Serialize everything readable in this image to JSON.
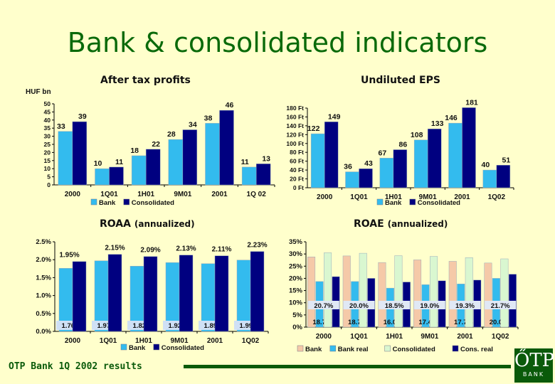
{
  "page": {
    "title": "Bank & consolidated indicators"
  },
  "footer": {
    "text": "OTP Bank 1Q 2002 results",
    "logo_word": "BANK",
    "logo_mark": "ŐTP"
  },
  "colors": {
    "bank": "#33bbee",
    "consolidated": "#000080",
    "bank_nominal": "#f5c9a8",
    "consolidated_nominal": "#d9f7d0",
    "brand": "#0a5a0a"
  },
  "chart_data": [
    {
      "id": "profits",
      "type": "bar",
      "title": "After tax profits",
      "unit": "HUF bn",
      "categories": [
        "2000",
        "1Q01",
        "1H01",
        "9M01",
        "2001",
        "1Q 02"
      ],
      "series": [
        {
          "name": "Bank",
          "values": [
            33,
            10,
            18,
            28,
            38,
            11
          ]
        },
        {
          "name": "Consolidated",
          "values": [
            39,
            11,
            22,
            34,
            46,
            13
          ]
        }
      ],
      "ylim": [
        0,
        50
      ],
      "yticks": [
        0,
        5,
        10,
        15,
        20,
        25,
        30,
        35,
        40,
        45,
        50
      ],
      "ytick_labels": [
        "0",
        "5",
        "10",
        "15",
        "20",
        "25",
        "30",
        "35",
        "40",
        "45",
        "50"
      ],
      "data_labels": [
        [
          "33",
          "10",
          "18",
          "28",
          "38",
          "11"
        ],
        [
          "39",
          "11",
          "22",
          "34",
          "46",
          "13"
        ]
      ],
      "legend": "bottom"
    },
    {
      "id": "eps",
      "type": "bar",
      "title": "Undiluted EPS",
      "categories": [
        "2000",
        "1Q01",
        "1H01",
        "9M01",
        "2001",
        "1Q02"
      ],
      "series": [
        {
          "name": "Bank",
          "values": [
            122,
            36,
            67,
            108,
            146,
            40
          ]
        },
        {
          "name": "Consolidated",
          "values": [
            149,
            43,
            86,
            133,
            181,
            51
          ]
        }
      ],
      "ylim": [
        0,
        180
      ],
      "yticks": [
        0,
        20,
        40,
        60,
        80,
        100,
        120,
        140,
        160,
        180
      ],
      "ytick_labels": [
        "0 Ft",
        "20 Ft",
        "40 Ft",
        "60 Ft",
        "80 Ft",
        "100 Ft",
        "120 Ft",
        "140 Ft",
        "160 Ft",
        "180 Ft"
      ],
      "data_labels": [
        [
          "122",
          "36",
          "67",
          "108",
          "146",
          "40"
        ],
        [
          "149",
          "43",
          "86",
          "133",
          "181",
          "51"
        ]
      ],
      "legend": "bottom"
    },
    {
      "id": "roaa",
      "type": "bar",
      "title": "ROAA",
      "title_note": "(annualized)",
      "categories": [
        "2000",
        "1Q01",
        "1H01",
        "9M01",
        "2001",
        "1Q02"
      ],
      "series": [
        {
          "name": "Bank",
          "values": [
            1.76,
            1.97,
            1.82,
            1.92,
            1.89,
            1.99
          ]
        },
        {
          "name": "Consolidated",
          "values": [
            1.95,
            2.15,
            2.09,
            2.13,
            2.11,
            2.23
          ]
        }
      ],
      "ylim": [
        0,
        2.5
      ],
      "yticks": [
        0,
        0.5,
        1.0,
        1.5,
        2.0,
        2.5
      ],
      "ytick_labels": [
        "0.0%",
        "0.5%",
        "1.0%",
        "1.5%",
        "2.0%",
        "2.5%"
      ],
      "data_labels": [
        [
          "1.76%",
          "1.97%",
          "1.82%",
          "1.92%",
          "1.89%",
          "1.99%"
        ],
        [
          "1.95%",
          "2.15%",
          "2.09%",
          "2.13%",
          "2.11%",
          "2.23%"
        ]
      ],
      "legend": "bottom"
    },
    {
      "id": "roae",
      "type": "bar",
      "title": "ROAE",
      "title_note": "(annualized)",
      "categories": [
        "2000",
        "1Q01",
        "1H01",
        "9M01",
        "2001",
        "1Q02"
      ],
      "series": [
        {
          "name": "Bank",
          "values": [
            28.8,
            29.2,
            26.5,
            27.6,
            27.0,
            26.3
          ]
        },
        {
          "name": "Bank real",
          "values": [
            18.7,
            18.7,
            16.0,
            17.4,
            17.7,
            20.0
          ]
        },
        {
          "name": "Consolidated",
          "values": [
            30.5,
            30.3,
            29.3,
            29.0,
            28.5,
            28.0
          ]
        },
        {
          "name": "Cons. real",
          "values": [
            20.7,
            20.0,
            18.5,
            19.0,
            19.3,
            21.7
          ]
        }
      ],
      "ylim": [
        0,
        35
      ],
      "yticks": [
        0,
        5,
        10,
        15,
        20,
        25,
        30,
        35
      ],
      "ytick_labels": [
        "0%",
        "5%",
        "10%",
        "15%",
        "20%",
        "25%",
        "30%",
        "35%"
      ],
      "data_labels": [
        null,
        [
          "18.7%",
          "18.7%",
          "16.0%",
          "17.4%",
          "17.7%",
          "20.0%"
        ],
        null,
        [
          "20.7%",
          "20.0%",
          "18.5%",
          "19.0%",
          "19.3%",
          "21.7%"
        ]
      ],
      "legend": "bottom"
    }
  ]
}
